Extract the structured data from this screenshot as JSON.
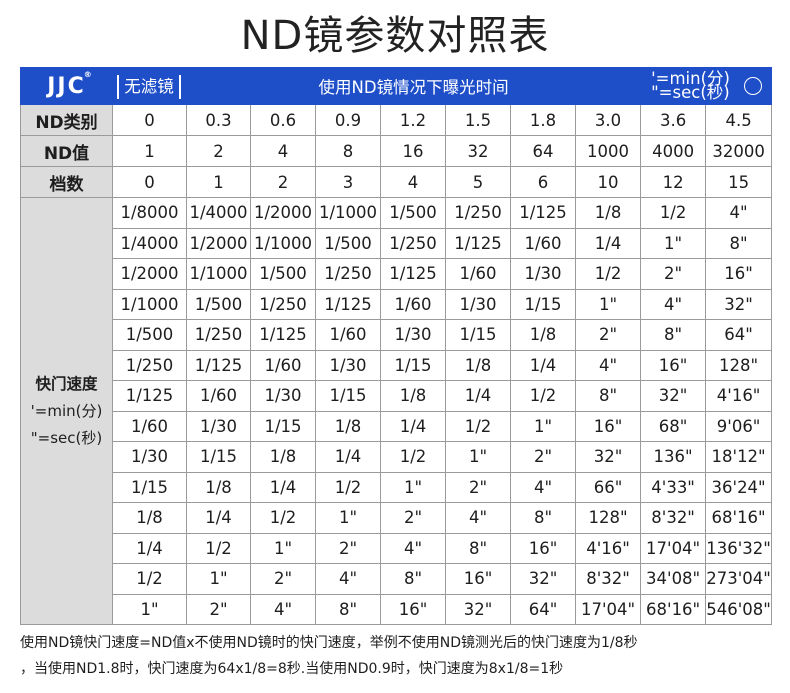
{
  "title": "ND镜参数对照表",
  "header": {
    "logo": "JJC",
    "logo_mark": "®",
    "no_filter": "无滤镜",
    "exposure_title": "使用ND镜情况下曝光时间",
    "unit_min": "'=min(分)",
    "unit_sec": "\"=sec(秒)"
  },
  "rows": {
    "nd_type": {
      "label": "ND类别",
      "values": [
        "0",
        "0.3",
        "0.6",
        "0.9",
        "1.2",
        "1.5",
        "1.8",
        "3.0",
        "3.6",
        "4.5"
      ]
    },
    "nd_value": {
      "label": "ND值",
      "values": [
        "1",
        "2",
        "4",
        "8",
        "16",
        "32",
        "64",
        "1000",
        "4000",
        "32000"
      ]
    },
    "stops": {
      "label": "档数",
      "values": [
        "0",
        "1",
        "2",
        "3",
        "4",
        "5",
        "6",
        "10",
        "12",
        "15"
      ]
    }
  },
  "shutter": {
    "label": "快门速度",
    "unit_min": "'=min(分)",
    "unit_sec": "\"=sec(秒)",
    "table": [
      [
        "1/8000",
        "1/4000",
        "1/2000",
        "1/1000",
        "1/500",
        "1/250",
        "1/125",
        "1/8",
        "1/2",
        "4\""
      ],
      [
        "1/4000",
        "1/2000",
        "1/1000",
        "1/500",
        "1/250",
        "1/125",
        "1/60",
        "1/4",
        "1\"",
        "8\""
      ],
      [
        "1/2000",
        "1/1000",
        "1/500",
        "1/250",
        "1/125",
        "1/60",
        "1/30",
        "1/2",
        "2\"",
        "16\""
      ],
      [
        "1/1000",
        "1/500",
        "1/250",
        "1/125",
        "1/60",
        "1/30",
        "1/15",
        "1\"",
        "4\"",
        "32\""
      ],
      [
        "1/500",
        "1/250",
        "1/125",
        "1/60",
        "1/30",
        "1/15",
        "1/8",
        "2\"",
        "8\"",
        "64\""
      ],
      [
        "1/250",
        "1/125",
        "1/60",
        "1/30",
        "1/15",
        "1/8",
        "1/4",
        "4\"",
        "16\"",
        "128\""
      ],
      [
        "1/125",
        "1/60",
        "1/30",
        "1/15",
        "1/8",
        "1/4",
        "1/2",
        "8\"",
        "32\"",
        "4'16\""
      ],
      [
        "1/60",
        "1/30",
        "1/15",
        "1/8",
        "1/4",
        "1/2",
        "1\"",
        "16\"",
        "68\"",
        "9'06\""
      ],
      [
        "1/30",
        "1/15",
        "1/8",
        "1/4",
        "1/2",
        "1\"",
        "2\"",
        "32\"",
        "136\"",
        "18'12\""
      ],
      [
        "1/15",
        "1/8",
        "1/4",
        "1/2",
        "1\"",
        "2\"",
        "4\"",
        "66\"",
        "4'33\"",
        "36'24\""
      ],
      [
        "1/8",
        "1/4",
        "1/2",
        "1\"",
        "2\"",
        "4\"",
        "8\"",
        "128\"",
        "8'32\"",
        "68'16\""
      ],
      [
        "1/4",
        "1/2",
        "1\"",
        "2\"",
        "4\"",
        "8\"",
        "16\"",
        "4'16\"",
        "17'04\"",
        "136'32\""
      ],
      [
        "1/2",
        "1\"",
        "2\"",
        "4\"",
        "8\"",
        "16\"",
        "32\"",
        "8'32\"",
        "34'08\"",
        "273'04\""
      ],
      [
        "1\"",
        "2\"",
        "4\"",
        "8\"",
        "16\"",
        "32\"",
        "64\"",
        "17'04\"",
        "68'16\"",
        "546'08\""
      ]
    ]
  },
  "footnote": {
    "line1": "使用ND镜快门速度=ND值x不使用ND镜时的快门速度，举例不使用ND镜测光后的快门速度为1/8秒",
    "line2": "，当使用ND1.8时，快门速度为64x1/8=8秒.当使用ND0.9时，快门速度为8x1/8=1秒"
  },
  "colors": {
    "header_blue": "#1f4fc8",
    "label_gray": "#dcdcdc",
    "border": "#9a9a9a"
  }
}
